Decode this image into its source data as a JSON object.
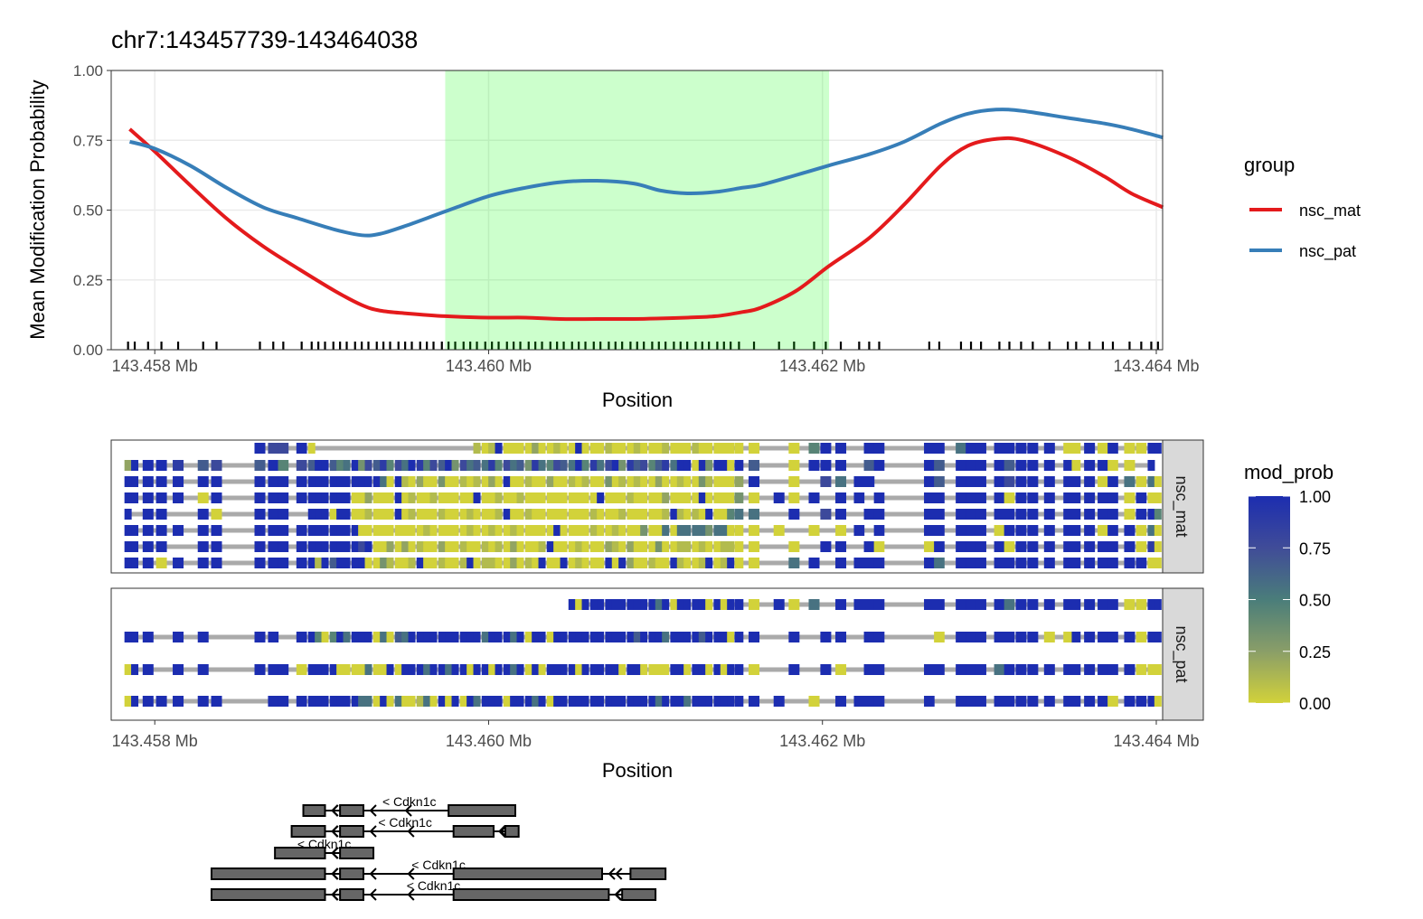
{
  "chart_data": [
    {
      "type": "line",
      "title": "chr7:143457739-143464038",
      "xlabel": "Position",
      "ylabel": "Mean Modification Probability",
      "xlim": [
        143.457739,
        143.464038
      ],
      "ylim": [
        0,
        1
      ],
      "x_tick_values": [
        143.458,
        143.46,
        143.462,
        143.464
      ],
      "x_tick_labels": [
        "143.458 Mb",
        "143.460 Mb",
        "143.462 Mb",
        "143.464 Mb"
      ],
      "y_tick_values": [
        0,
        0.25,
        0.5,
        0.75,
        1
      ],
      "y_tick_labels": [
        "0.00",
        "0.25",
        "0.50",
        "0.75",
        "1.00"
      ],
      "grid": true,
      "legend": {
        "title": "group",
        "position": "right"
      },
      "highlight": {
        "start": 143.45974,
        "end": 143.46204,
        "color": "#00FF00"
      },
      "rug": "cpg_sites",
      "x": [
        143.45785,
        143.458,
        143.45821,
        143.45843,
        143.45865,
        143.45886,
        143.45908,
        143.45924,
        143.45935,
        143.45951,
        143.45974,
        143.46,
        143.46022,
        143.46043,
        143.46065,
        143.46087,
        143.46103,
        143.46119,
        143.46136,
        143.46152,
        143.46163,
        143.46184,
        143.46204,
        143.46228,
        143.46249,
        143.46271,
        143.46287,
        143.46304,
        143.4632,
        143.46347,
        143.46369,
        143.46385,
        143.46404
      ],
      "series": [
        {
          "name": "nsc_mat",
          "color": "#E41A1C",
          "values": [
            0.79,
            0.71,
            0.59,
            0.47,
            0.37,
            0.29,
            0.21,
            0.16,
            0.14,
            0.13,
            0.12,
            0.115,
            0.115,
            0.11,
            0.11,
            0.11,
            0.112,
            0.115,
            0.12,
            0.135,
            0.15,
            0.21,
            0.3,
            0.4,
            0.52,
            0.66,
            0.73,
            0.755,
            0.75,
            0.69,
            0.62,
            0.56,
            0.51
          ]
        },
        {
          "name": "nsc_pat",
          "color": "#377EB8",
          "values": [
            0.745,
            0.72,
            0.66,
            0.58,
            0.51,
            0.47,
            0.43,
            0.41,
            0.415,
            0.445,
            0.495,
            0.55,
            0.58,
            0.6,
            0.605,
            0.595,
            0.57,
            0.56,
            0.565,
            0.58,
            0.59,
            0.625,
            0.66,
            0.7,
            0.745,
            0.81,
            0.845,
            0.86,
            0.855,
            0.83,
            0.81,
            0.79,
            0.76
          ]
        }
      ]
    },
    {
      "type": "heatmap",
      "xlabel": "Position",
      "xlim": [
        143.457739,
        143.464038
      ],
      "x_tick_values": [
        143.458,
        143.46,
        143.462,
        143.464
      ],
      "x_tick_labels": [
        "143.458 Mb",
        "143.460 Mb",
        "143.462 Mb",
        "143.464 Mb"
      ],
      "value_encoding": "one character per CpG site in cpg_sites: digit d = mod_prob d/9, '.' = not covered",
      "facets": [
        {
          "label": "nsc_mat",
          "reads": [
            ".......97790 .......... .......... ..10190000 2001009000 1000100010 001000000 0.0499.999 9599999990 09090099",
            "299986769476 9964593768 4759847693 7565847563 8547659485 7938674685 990939909 6.0999.699 6999969999 09900.9.",
            "999999999999 9999999995 0910200300 1010209001 0020010100 3010100200 100310002 9.0.7599.9 6999979999 99095050",
            "999990999999 9999900200 0901001000 0090010010 0000000009 0001000020 000900003 0909.99.99 9999909999 99990900",
            "9.99.90999.9 9909900100 0901000100 0100019001 0000000010 0010000019 101090045 5.9.79.999 9999999999 99990994",
            "999999999999 9999990000 0000010000 0100100100 0009000010 0100030050 555535500 00.0.09.99 9999099999 99099050",
            "9999.9999999 9999997900 2020100200 1001010200 0190001000 2102000300 110100110 0.0.99.900 9999909999 99999080",
            "999099999999 1969999003 1001900100 1901100201 0900901000 9092001009 100190190 0.59.99999 5999999999 99999900"
          ]
        },
        {
          "label": "nsc_pat",
          "reads": [
            "............ .......... .......... .......... .....90999 9999999590 999909099 0905.99999 9999959999 99990099",
            "999.99.99.99 4049599905 0659999999 9995999590 9909999999 9999699959 999699909 9.9.99.99. 0999999900 99999099",
            "099.99.99909 9990000500 9099959959 9099099590 9099990999 9909900009 909909099 0.9.90.999 9999599999 99999000",
            "0999999.9999 9999995509 0500150909 0959990999 5909999999 9999999599 959999999 99.0.99999 .999999999 99909990"
          ]
        }
      ],
      "colorbar": {
        "title": "mod_prob",
        "tick_values": [
          1,
          0.75,
          0.5,
          0.25,
          0
        ],
        "tick_labels": [
          "1.00",
          "0.75",
          "0.50",
          "0.25",
          "0.00"
        ],
        "colors": [
          "#D2D23A",
          "#8A9E68",
          "#4A7D7A",
          "#404C98",
          "#1C2DB0"
        ]
      }
    },
    {
      "type": "gene_track",
      "transcripts": [
        {
          "label": "< Cdkn1c",
          "exons": [
            [
              143.45889,
              143.45902
            ],
            [
              143.45911,
              143.45925
            ],
            [
              143.45976,
              143.46016
            ]
          ]
        },
        {
          "label": "< Cdkn1c",
          "exons": [
            [
              143.45882,
              143.45902
            ],
            [
              143.45911,
              143.45925
            ],
            [
              143.45979,
              143.46003
            ],
            [
              143.4601,
              143.46018
            ]
          ]
        },
        {
          "label": "< Cdkn1c",
          "exons": [
            [
              143.45872,
              143.45902
            ],
            [
              143.45911,
              143.45931
            ]
          ]
        },
        {
          "label": "< Cdkn1c",
          "exons": [
            [
              143.45834,
              143.45902
            ],
            [
              143.45911,
              143.45925
            ],
            [
              143.45979,
              143.46068
            ],
            [
              143.46085,
              143.46106
            ]
          ]
        },
        {
          "label": "< Cdkn1c",
          "exons": [
            [
              143.45834,
              143.45902
            ],
            [
              143.45911,
              143.45925
            ],
            [
              143.45979,
              143.46072
            ],
            [
              143.4608,
              143.461
            ]
          ]
        }
      ]
    }
  ],
  "cpg_sites": [
    143.45784,
    143.45788,
    143.45796,
    143.45804,
    143.45814,
    143.45829,
    143.45837,
    143.45863,
    143.45871,
    143.45877,
    143.45888,
    143.45894,
    143.45898,
    143.45902,
    143.45907,
    143.45911,
    143.45915,
    143.4592,
    143.45924,
    143.45928,
    143.45933,
    143.45937,
    143.45941,
    143.45946,
    143.4595,
    143.45954,
    143.45959,
    143.45963,
    143.45967,
    143.45972,
    143.45976,
    143.4598,
    143.45985,
    143.45989,
    143.45993,
    143.45998,
    143.46002,
    143.46006,
    143.46011,
    143.46015,
    143.46019,
    143.46024,
    143.46028,
    143.46032,
    143.46037,
    143.46041,
    143.46045,
    143.4605,
    143.46054,
    143.46058,
    143.46063,
    143.46067,
    143.46072,
    143.46076,
    143.4608,
    143.46085,
    143.46089,
    143.46093,
    143.46098,
    143.46102,
    143.46106,
    143.46111,
    143.46115,
    143.46119,
    143.46124,
    143.46128,
    143.46132,
    143.46137,
    143.46141,
    143.46145,
    143.4615,
    143.46159,
    143.46174,
    143.46183,
    143.46195,
    143.46202,
    143.46211,
    143.46222,
    143.46228,
    143.46234,
    143.46264,
    143.4627,
    143.46283,
    143.46289,
    143.46295,
    143.46306,
    143.46312,
    143.46319,
    143.46326,
    143.46336,
    143.46347,
    143.46352,
    143.4636,
    143.46368,
    143.46374,
    143.46384,
    143.46391,
    143.46397,
    143.46401
  ]
}
